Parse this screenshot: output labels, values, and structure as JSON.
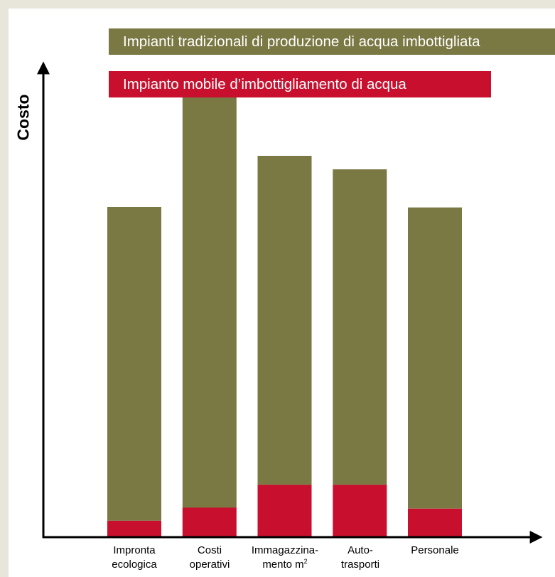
{
  "chart_data": {
    "type": "bar",
    "stacked": true,
    "ylabel": "Costo",
    "xlabel": "",
    "y_ticks": false,
    "grid": false,
    "legend_position": "top",
    "ylim": [
      0,
      100
    ],
    "categories": [
      {
        "line1": "Impronta",
        "line2": "ecologica",
        "sup": ""
      },
      {
        "line1": "Costi",
        "line2": "operativi",
        "sup": ""
      },
      {
        "line1": "Immagazzina-",
        "line2": "mento m",
        "sup": "2"
      },
      {
        "line1": "Auto-",
        "line2": "trasporti",
        "sup": ""
      },
      {
        "line1": "Personale",
        "line2": "",
        "sup": ""
      }
    ],
    "series": [
      {
        "name": "Impianto mobile d’imbottigliamento di acqua",
        "color": "#c8102e",
        "values": [
          3.4,
          6.2,
          11.1,
          11.1,
          6.0
        ]
      },
      {
        "name": "Impianti tradizionali di produzione di acqua imbottigliata",
        "color": "#7a7843",
        "values": [
          67.4,
          90.0,
          70.7,
          67.8,
          64.7
        ]
      }
    ]
  }
}
